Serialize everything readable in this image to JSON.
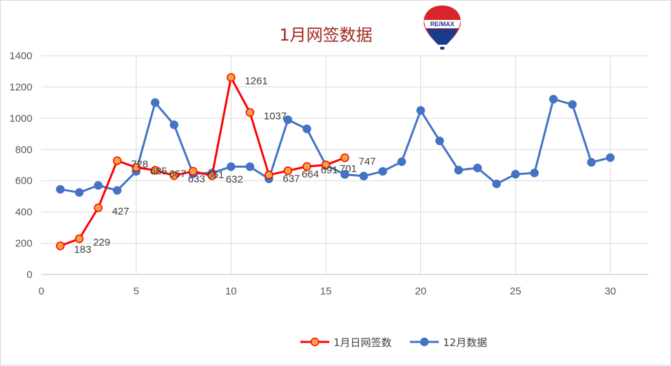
{
  "chart_data": {
    "type": "line",
    "title": "1月网签数据",
    "xlim": [
      0,
      32
    ],
    "ylim": [
      0,
      1400
    ],
    "x_ticks": [
      0,
      5,
      10,
      15,
      20,
      25,
      30
    ],
    "y_ticks": [
      0,
      200,
      400,
      600,
      800,
      1000,
      1200,
      1400
    ],
    "grid": true,
    "legend_position": "bottom",
    "logo": "RE/MAX",
    "series": [
      {
        "name": "1月日网签数",
        "color": "#ff0000",
        "marker_fill": "#f4a340",
        "x": [
          1,
          2,
          3,
          4,
          5,
          6,
          7,
          8,
          9,
          10,
          11,
          12,
          13,
          14,
          15,
          16
        ],
        "values": [
          183,
          229,
          427,
          728,
          685,
          667,
          633,
          661,
          632,
          1261,
          1037,
          637,
          664,
          691,
          701,
          747
        ],
        "labels": [
          "183",
          "229",
          "427",
          "728",
          "685",
          "667",
          "633",
          "661",
          "632",
          "1261",
          "1037",
          "637",
          "664",
          "691",
          "701",
          "747"
        ]
      },
      {
        "name": "12月数据",
        "color": "#4472c4",
        "marker_fill": "#4472c4",
        "x": [
          1,
          2,
          3,
          4,
          5,
          6,
          7,
          8,
          9,
          10,
          11,
          12,
          13,
          14,
          15,
          16,
          17,
          18,
          19,
          20,
          21,
          22,
          23,
          24,
          25,
          26,
          27,
          28,
          29,
          30
        ],
        "values": [
          545,
          525,
          570,
          538,
          660,
          1100,
          958,
          645,
          650,
          690,
          690,
          612,
          990,
          932,
          700,
          640,
          630,
          660,
          722,
          1050,
          855,
          668,
          682,
          580,
          642,
          650,
          1122,
          1088,
          718,
          748
        ]
      }
    ]
  }
}
